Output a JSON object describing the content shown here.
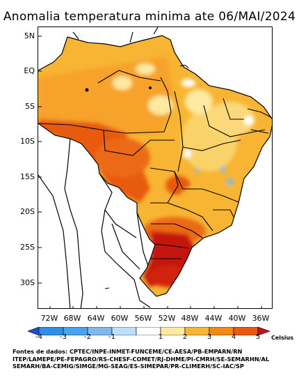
{
  "title": "Anomalia temperatura minima ate 06/MAI/2024",
  "lat_labels": [
    "5N",
    "EQ",
    "5S",
    "10S",
    "15S",
    "20S",
    "25S",
    "30S"
  ],
  "lon_labels": [
    "72W",
    "68W",
    "64W",
    "60W",
    "56W",
    "52W",
    "48W",
    "44W",
    "40W",
    "36W"
  ],
  "colorbar": {
    "ticks": [
      "-4",
      "-3",
      "-2",
      "-1",
      "1",
      "2",
      "3",
      "4",
      "5"
    ],
    "unit": "Celsius",
    "colors": [
      "#1f4fd8",
      "#2f8fe8",
      "#7fb8ee",
      "#ffffff",
      "#fde9a0",
      "#f7b533",
      "#f28a17",
      "#e85a0e",
      "#c4160e"
    ]
  },
  "sources": {
    "line1": "Fontes de dados: CPTEC/INPE-INMET-FUNCEME/CE-AESA/PB-EMPARN/RN",
    "line2": "ITEP/LAMEPE/PE-FEPAGRO/RS-CHESF-COMET/RJ-DHME/PI-CMRH/SE-SEMARHN/AL",
    "line3": "SEMARH/BA-CEMIG/SIMGE/MG-SEAG/ES-SIMEPAR/PR-CLIMERH/SC-IAC/SP"
  }
}
